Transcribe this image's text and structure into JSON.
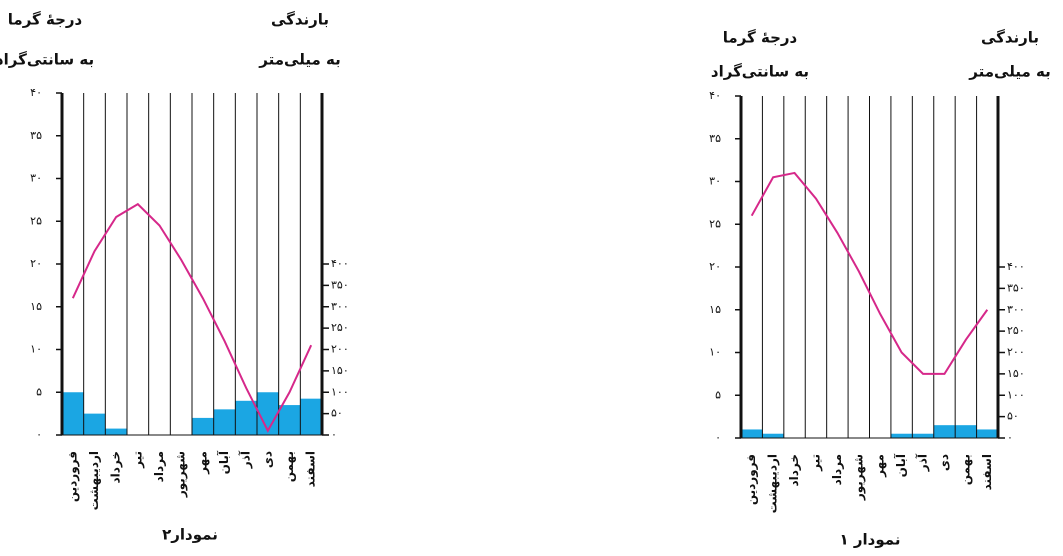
{
  "chart_data": [
    {
      "type": "climograph",
      "caption": "نمودار۲",
      "y_label": [
        "درجهٔ گرما",
        "به سانتی‌گراد"
      ],
      "y2_label": [
        "بارندگی",
        "به میلی‌متر"
      ],
      "categories": [
        "فروردین",
        "اردیبهشت",
        "خرداد",
        "تیر",
        "مرداد",
        "شهریور",
        "مهر",
        "آبان",
        "آذر",
        "دی",
        "بهمن",
        "اسفند"
      ],
      "series": [
        {
          "kind": "line",
          "color": "#d6288a",
          "values": [
            16,
            21.5,
            25.5,
            27,
            24.5,
            20.5,
            16,
            11,
            5.5,
            0.5,
            5,
            10.5
          ]
        },
        {
          "kind": "bar",
          "axis": "y2",
          "color": "#1ba6e3",
          "values": [
            100,
            50,
            15,
            0,
            0,
            0,
            40,
            60,
            80,
            100,
            70,
            85
          ]
        }
      ],
      "ylim": [
        0,
        40
      ],
      "yticks": [
        {
          "value": 0,
          "label": "۰"
        },
        {
          "value": 5,
          "label": "۵"
        },
        {
          "value": 10,
          "label": "۱۰"
        },
        {
          "value": 15,
          "label": "۱۵"
        },
        {
          "value": 20,
          "label": "۲۰"
        },
        {
          "value": 25,
          "label": "۲۵"
        },
        {
          "value": 30,
          "label": "۳۰"
        },
        {
          "value": 35,
          "label": "۳۵"
        },
        {
          "value": 40,
          "label": "۴۰"
        }
      ],
      "y2lim": [
        0,
        800
      ],
      "y2ticks": [
        {
          "value": 0,
          "label": "۰"
        },
        {
          "value": 50,
          "label": "۵۰"
        },
        {
          "value": 100,
          "label": "۱۰۰"
        },
        {
          "value": 150,
          "label": "۱۵۰"
        },
        {
          "value": 200,
          "label": "۲۰۰"
        },
        {
          "value": 250,
          "label": "۲۵۰"
        },
        {
          "value": 300,
          "label": "۳۰۰"
        },
        {
          "value": 350,
          "label": "۳۵۰"
        },
        {
          "value": 400,
          "label": "۴۰۰"
        }
      ],
      "grid": true
    },
    {
      "type": "climograph",
      "caption": "نمودار ۱",
      "y_label": [
        "درجهٔ گرما",
        "به سانتی‌گراد"
      ],
      "y2_label": [
        "بارندگی",
        "به میلی‌متر"
      ],
      "categories": [
        "فروردین",
        "اردیبهشت",
        "خرداد",
        "تیر",
        "مرداد",
        "شهریور",
        "مهر",
        "آبان",
        "آذر",
        "دی",
        "بهمن",
        "اسفند"
      ],
      "series": [
        {
          "kind": "line",
          "color": "#d6288a",
          "values": [
            26,
            30.5,
            31,
            28,
            24,
            19.5,
            14.5,
            10,
            7.5,
            7.5,
            11.5,
            15
          ]
        },
        {
          "kind": "bar",
          "axis": "y2",
          "color": "#1ba6e3",
          "values": [
            20,
            10,
            0,
            0,
            0,
            0,
            0,
            10,
            10,
            30,
            30,
            20
          ]
        }
      ],
      "ylim": [
        0,
        40
      ],
      "yticks": [
        {
          "value": 0,
          "label": "۰"
        },
        {
          "value": 5,
          "label": "۵"
        },
        {
          "value": 10,
          "label": "۱۰"
        },
        {
          "value": 15,
          "label": "۱۵"
        },
        {
          "value": 20,
          "label": "۲۰"
        },
        {
          "value": 25,
          "label": "۲۵"
        },
        {
          "value": 30,
          "label": "۳۰"
        },
        {
          "value": 35,
          "label": "۳۵"
        },
        {
          "value": 40,
          "label": "۴۰"
        }
      ],
      "y2lim": [
        0,
        800
      ],
      "y2ticks": [
        {
          "value": 0,
          "label": "۰"
        },
        {
          "value": 50,
          "label": "۵۰"
        },
        {
          "value": 100,
          "label": "۱۰۰"
        },
        {
          "value": 150,
          "label": "۱۵۰"
        },
        {
          "value": 200,
          "label": "۲۰۰"
        },
        {
          "value": 250,
          "label": "۲۵۰"
        },
        {
          "value": 300,
          "label": "۳۰۰"
        },
        {
          "value": 350,
          "label": "۳۵۰"
        },
        {
          "value": 400,
          "label": "۴۰۰"
        }
      ],
      "grid": true
    }
  ]
}
